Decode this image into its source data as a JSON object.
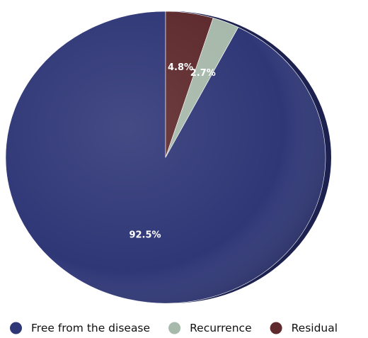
{
  "chart_data": {
    "type": "pie",
    "title": "",
    "start_angle_deg": 0,
    "direction": "counterclockwise",
    "legend_position": "bottom",
    "slices": [
      {
        "label": "Free from the disease",
        "value": 92.5,
        "value_label": "92.5%",
        "color": "#2f3777"
      },
      {
        "label": "Recurrence",
        "value": 2.7,
        "value_label": "2.7%",
        "color": "#a7b9ab"
      },
      {
        "label": "Residual",
        "value": 4.8,
        "value_label": "4.8%",
        "color": "#5e2a2d"
      }
    ]
  }
}
